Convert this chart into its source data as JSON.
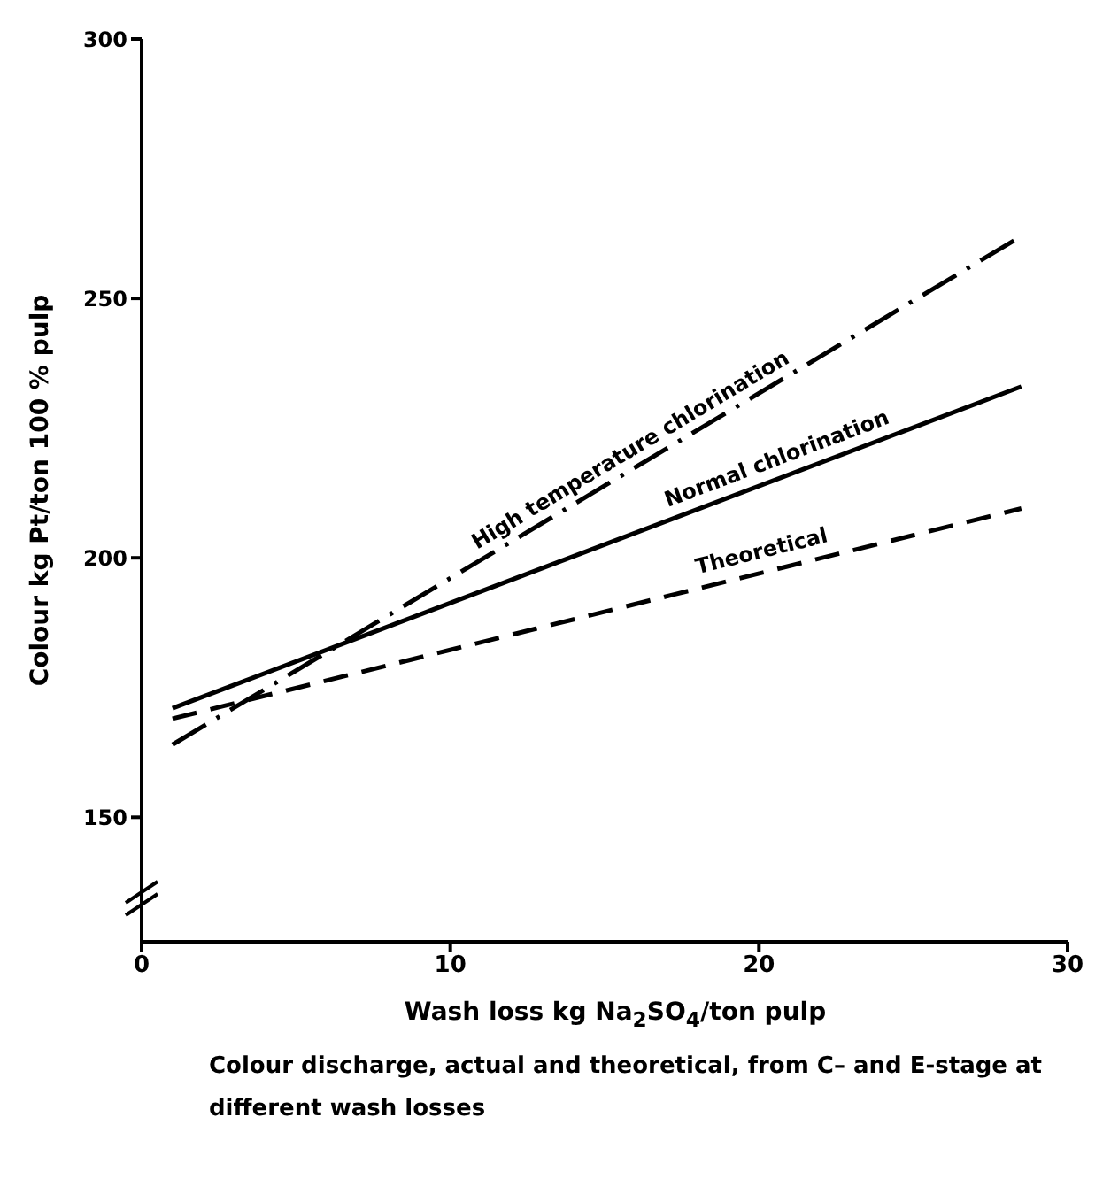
{
  "chart_data": {
    "type": "line",
    "xlabel": "Wash loss kg Na$_{2}$SO$_{4}$/ton pulp",
    "ylabel": "Colour kg Pt/ton 100 % pulp",
    "annotations": [
      "Colour discharge, actual and theoretical, from C– and E-stage at different wash losses"
    ],
    "x": [
      1,
      28.5
    ],
    "series": [
      {
        "name": "High temperature chlorination",
        "color": "#000000",
        "values": [
          164,
          262
        ],
        "line_style": "dashdot"
      },
      {
        "name": "Normal chlorination",
        "color": "#000000",
        "values": [
          171,
          233
        ],
        "line_style": "solid"
      },
      {
        "name": "Theoretical",
        "color": "#000000",
        "values": [
          169,
          209.5
        ],
        "line_style": "dashed"
      }
    ],
    "xlim": [
      0,
      30
    ],
    "xticks": [
      0,
      10,
      20,
      30
    ],
    "ylim": [
      126,
      300
    ],
    "yticks": [
      150,
      200,
      250,
      300
    ],
    "grid": false,
    "legend": false,
    "marker": "none"
  }
}
